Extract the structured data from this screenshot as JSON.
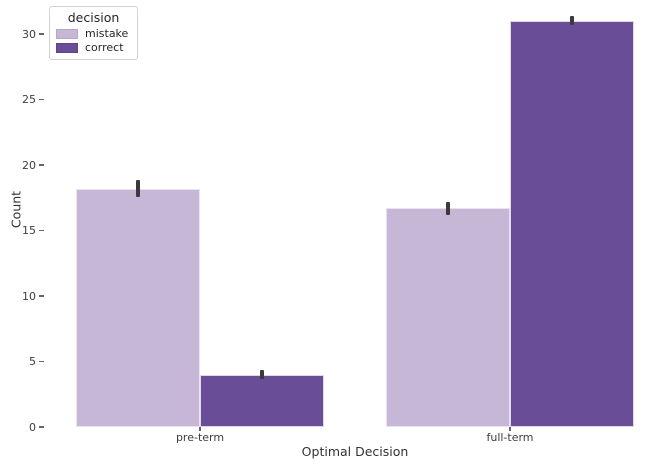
{
  "figure": {
    "background": "#ffffff",
    "text_color": "#3d3d3d"
  },
  "chart_data": {
    "type": "bar",
    "title": "",
    "xlabel": "Optimal Decision",
    "ylabel": "Count",
    "categories": [
      "pre-term",
      "full-term"
    ],
    "series": [
      {
        "name": "mistake",
        "color": "#c6b7d6",
        "values": [
          18.2,
          16.7
        ],
        "errors": [
          0.65,
          0.5
        ]
      },
      {
        "name": "correct",
        "color": "#694d96",
        "values": [
          4.0,
          31.0
        ],
        "errors": [
          0.35,
          0.35
        ]
      }
    ],
    "error_bar_color": "#3a3a3a",
    "ylim": [
      0,
      32.6
    ],
    "yticks": [
      0,
      5,
      10,
      15,
      20,
      25,
      30
    ],
    "grid": false,
    "legend": {
      "title": "decision",
      "position": "upper left",
      "items": [
        "mistake",
        "correct"
      ]
    }
  }
}
